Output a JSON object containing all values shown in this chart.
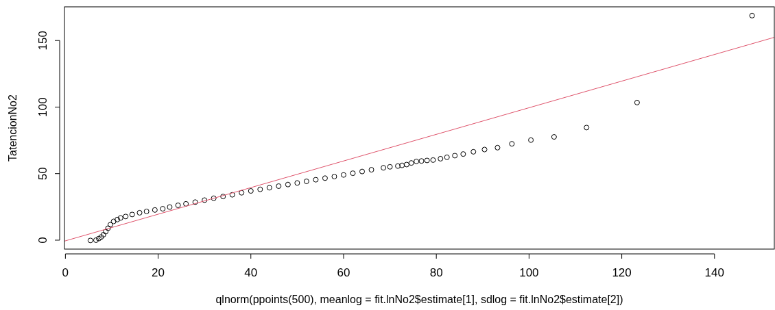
{
  "chart_data": {
    "type": "scatter",
    "xlabel": "qlnorm(ppoints(500), meanlog = fit.lnNo2$estimate[1], sdlog = fit.lnNo2$estimate[2])",
    "ylabel": "TatencionNo2",
    "xlim": [
      -0.2,
      152.9
    ],
    "ylim": [
      -6.7,
      175.3
    ],
    "xticks": [
      0,
      20,
      40,
      60,
      80,
      100,
      120,
      140
    ],
    "yticks": [
      0,
      50,
      100,
      150
    ],
    "grid": false,
    "series": [
      {
        "color": "#000000",
        "marker": "circle",
        "x": [
          5.4,
          6.6,
          7.2,
          7.7,
          8.2,
          8.7,
          9.2,
          9.7,
          10.4,
          11.2,
          11.9,
          13,
          14.4,
          16,
          17.5,
          19.3,
          21,
          22.5,
          24.3,
          26,
          28,
          30,
          32,
          34,
          36,
          38,
          40,
          42,
          44,
          46,
          48,
          50,
          52,
          54,
          56,
          58,
          60,
          62,
          64,
          66,
          68.6,
          70,
          71.7,
          72.6,
          73.6,
          74.6,
          75.7,
          76.8,
          78,
          79.3,
          80.9,
          82.3,
          84,
          85.8,
          88,
          90.4,
          93.2,
          96.3,
          100.4,
          105.4,
          112.4,
          123.3,
          148.1
        ],
        "values": [
          -0.2,
          0,
          1.2,
          2.4,
          4.1,
          6.4,
          9,
          11.6,
          14.1,
          15.5,
          16.7,
          17.8,
          19.3,
          20.6,
          21.6,
          22.7,
          23.6,
          24.9,
          26.2,
          27.3,
          28.6,
          30.1,
          31.5,
          32.8,
          34.1,
          35.6,
          37,
          38.2,
          39.4,
          40.6,
          41.8,
          43,
          44.2,
          45.4,
          46.6,
          47.8,
          49,
          50.3,
          51.6,
          52.9,
          54.4,
          55.1,
          55.7,
          56.2,
          56.8,
          58,
          59.2,
          59.5,
          59.9,
          60.2,
          61.2,
          62.3,
          63.5,
          64.7,
          66.4,
          68.1,
          69.5,
          72.4,
          75.2,
          77.6,
          84.6,
          103.4,
          168.7
        ]
      },
      {
        "type": "line",
        "color": "#df536b",
        "line_style": "solid",
        "marker": "none",
        "x": [
          -0.2,
          152.9
        ],
        "values": [
          -0.7,
          152.4
        ]
      }
    ]
  }
}
